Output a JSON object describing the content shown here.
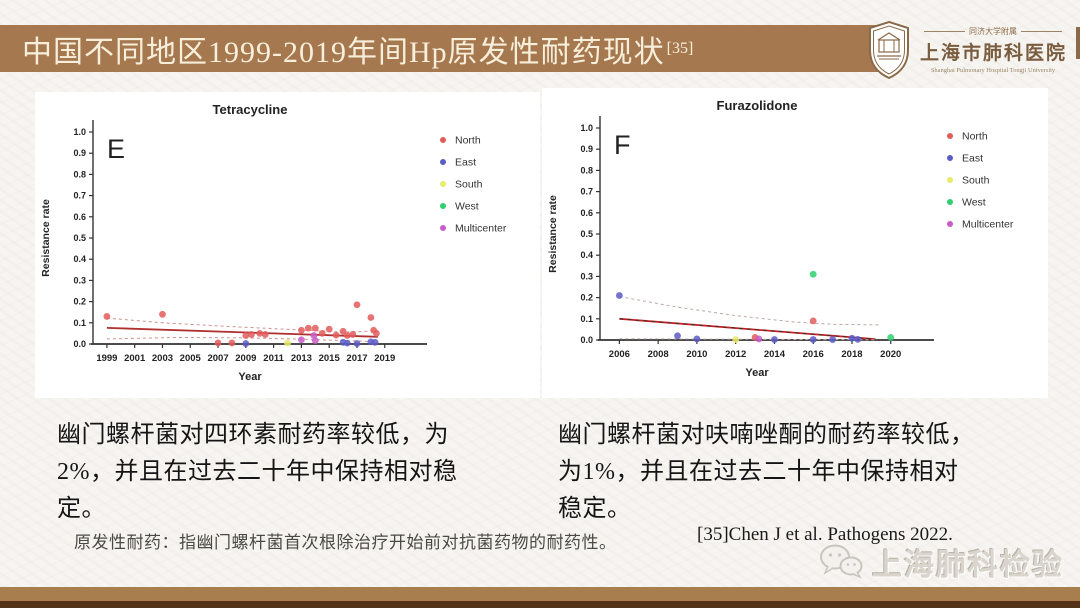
{
  "header": {
    "title": "中国不同地区1999-2019年间Hp原发性耐药现状",
    "reference_sup": "[35]"
  },
  "logo": {
    "affiliation": "同济大学附属",
    "hospital_cn": "上海市肺科医院",
    "hospital_en": "Shanghai Pulmonary Hospital Tongji University"
  },
  "chart_data": [
    {
      "type": "scatter",
      "panel_label": "E",
      "title": "Tetracycline",
      "xlabel": "Year",
      "ylabel": "Resistance rate",
      "xlim": [
        1998,
        2020.6
      ],
      "ylim": [
        0,
        1.0
      ],
      "xticks": [
        1999,
        2001,
        2003,
        2005,
        2007,
        2009,
        2011,
        2013,
        2015,
        2017,
        2019
      ],
      "yticks": [
        0,
        0.1,
        0.2,
        0.3,
        0.4,
        0.5,
        0.6,
        0.7,
        0.8,
        0.9,
        1.0
      ],
      "grid": false,
      "legend_position": "right",
      "legend": [
        {
          "label": "North",
          "color": "#e25c5c"
        },
        {
          "label": "East",
          "color": "#5c5cc8"
        },
        {
          "label": "South",
          "color": "#e9e96a"
        },
        {
          "label": "West",
          "color": "#2fd06e"
        },
        {
          "label": "Multicenter",
          "color": "#c85cc8"
        }
      ],
      "series": [
        {
          "name": "North",
          "color": "#e25c5c",
          "points": [
            [
              1999,
              0.13
            ],
            [
              2003,
              0.14
            ],
            [
              2007,
              0.005
            ],
            [
              2008,
              0.005
            ],
            [
              2009,
              0.04
            ],
            [
              2009.4,
              0.045
            ],
            [
              2010,
              0.05
            ],
            [
              2010.4,
              0.045
            ],
            [
              2013,
              0.065
            ],
            [
              2013.5,
              0.075
            ],
            [
              2014,
              0.075
            ],
            [
              2014.5,
              0.05
            ],
            [
              2015,
              0.07
            ],
            [
              2015.5,
              0.042
            ],
            [
              2016,
              0.06
            ],
            [
              2016.3,
              0.04
            ],
            [
              2016.7,
              0.045
            ],
            [
              2017,
              0.185
            ],
            [
              2018,
              0.125
            ],
            [
              2018.2,
              0.065
            ],
            [
              2018.4,
              0.05
            ]
          ]
        },
        {
          "name": "East",
          "color": "#5c5cc8",
          "points": [
            [
              2009,
              0.002
            ],
            [
              2016,
              0.008
            ],
            [
              2016.3,
              0.004
            ],
            [
              2017,
              0.002
            ],
            [
              2018,
              0.01
            ],
            [
              2018.3,
              0.008
            ]
          ]
        },
        {
          "name": "South",
          "color": "#e9e96a",
          "points": [
            [
              2012,
              0.005
            ]
          ]
        },
        {
          "name": "West",
          "color": "#2fd06e",
          "points": []
        },
        {
          "name": "Multicenter",
          "color": "#c85cc8",
          "points": [
            [
              2013,
              0.02
            ],
            [
              2013.9,
              0.04
            ],
            [
              2014,
              0.016
            ]
          ]
        }
      ],
      "trendlines": [
        {
          "label": "ci-upper",
          "points": [
            [
              1999,
              0.122
            ],
            [
              2003,
              0.1
            ],
            [
              2008,
              0.082
            ],
            [
              2013,
              0.066
            ],
            [
              2016,
              0.056
            ],
            [
              2018.5,
              0.062
            ]
          ],
          "color": "#cf9090",
          "dash": "3,3",
          "width": 1
        },
        {
          "label": "fit",
          "points": [
            [
              1999,
              0.076
            ],
            [
              2018.5,
              0.034
            ]
          ],
          "color": "#b03030",
          "width": 1.8
        },
        {
          "label": "ci-lower",
          "points": [
            [
              1999,
              0.024
            ],
            [
              2004,
              0.031
            ],
            [
              2009,
              0.029
            ],
            [
              2013,
              0.023
            ],
            [
              2016,
              0.016
            ],
            [
              2018.5,
              0.011
            ]
          ],
          "color": "#cf9090",
          "dash": "3,3",
          "width": 1
        }
      ]
    },
    {
      "type": "scatter",
      "panel_label": "F",
      "title": "Furazolidone",
      "xlabel": "Year",
      "ylabel": "Resistance rate",
      "xlim": [
        2005,
        2021.2
      ],
      "ylim": [
        0,
        1.0
      ],
      "xticks": [
        2006,
        2008,
        2010,
        2012,
        2014,
        2016,
        2018,
        2020
      ],
      "yticks": [
        0,
        0.1,
        0.2,
        0.3,
        0.4,
        0.5,
        0.6,
        0.7,
        0.8,
        0.9,
        1.0
      ],
      "grid": false,
      "legend_position": "right",
      "legend": [
        {
          "label": "North",
          "color": "#e25c5c"
        },
        {
          "label": "East",
          "color": "#5c5cc8"
        },
        {
          "label": "South",
          "color": "#e9e96a"
        },
        {
          "label": "West",
          "color": "#2fd06e"
        },
        {
          "label": "Multicenter",
          "color": "#c85cc8"
        }
      ],
      "series": [
        {
          "name": "North",
          "color": "#e25c5c",
          "points": [
            [
              2013,
              0.012
            ],
            [
              2016,
              0.09
            ]
          ]
        },
        {
          "name": "East",
          "color": "#5c5cc8",
          "points": [
            [
              2006,
              0.21
            ],
            [
              2009,
              0.02
            ],
            [
              2010,
              0.005
            ],
            [
              2014,
              0.002
            ],
            [
              2016,
              0.002
            ],
            [
              2017,
              0.002
            ],
            [
              2018,
              0.008
            ],
            [
              2018.3,
              0.003
            ]
          ]
        },
        {
          "name": "South",
          "color": "#e9e96a",
          "points": [
            [
              2012,
              0.002
            ]
          ]
        },
        {
          "name": "West",
          "color": "#2fd06e",
          "points": [
            [
              2016,
              0.31
            ],
            [
              2020,
              0.012
            ]
          ]
        },
        {
          "name": "Multicenter",
          "color": "#c85cc8",
          "points": [
            [
              2013.2,
              0.005
            ]
          ]
        }
      ],
      "trendlines": [
        {
          "label": "ci-upper",
          "points": [
            [
              2006,
              0.205
            ],
            [
              2009,
              0.155
            ],
            [
              2012,
              0.115
            ],
            [
              2015,
              0.085
            ],
            [
              2017,
              0.074
            ],
            [
              2019.5,
              0.071
            ]
          ],
          "color": "#b8aaa5",
          "dash": "3,3",
          "width": 1
        },
        {
          "label": "fit",
          "points": [
            [
              2006,
              0.1
            ],
            [
              2019.2,
              0.004
            ]
          ],
          "color": "#cc2020",
          "width": 1.8
        },
        {
          "label": "fit-dash-overlay",
          "points": [
            [
              2006,
              0.1
            ],
            [
              2019.2,
              0.004
            ]
          ],
          "color": "#333333",
          "dash": "4,4",
          "width": 1
        },
        {
          "label": "ci-lower",
          "points": [
            [
              2006,
              0.006
            ],
            [
              2019.2,
              0.001
            ]
          ],
          "color": "#b8aaa5",
          "dash": "3,3",
          "width": 1
        }
      ]
    }
  ],
  "notes": {
    "left": "幽门螺杆菌对四环素耐药率较低，为\n2%，并且在过去二十年中保持相对稳\n定。",
    "right": "幽门螺杆菌对呋喃唑酮的耐药率较低，\n为1%，并且在过去二十年中保持相对\n稳定。"
  },
  "footnote": "原发性耐药：指幽门螺杆菌首次根除治疗开始前对抗菌药物的耐药性。",
  "reference": "[35]Chen J et al. Pathogens 2022.",
  "watermark": {
    "icon": "wechat-icon",
    "text": "上海肺科检验"
  },
  "colors": {
    "header_bar": "#a5784f",
    "footer_light": "#a87e4e",
    "footer_dark": "#533317"
  }
}
